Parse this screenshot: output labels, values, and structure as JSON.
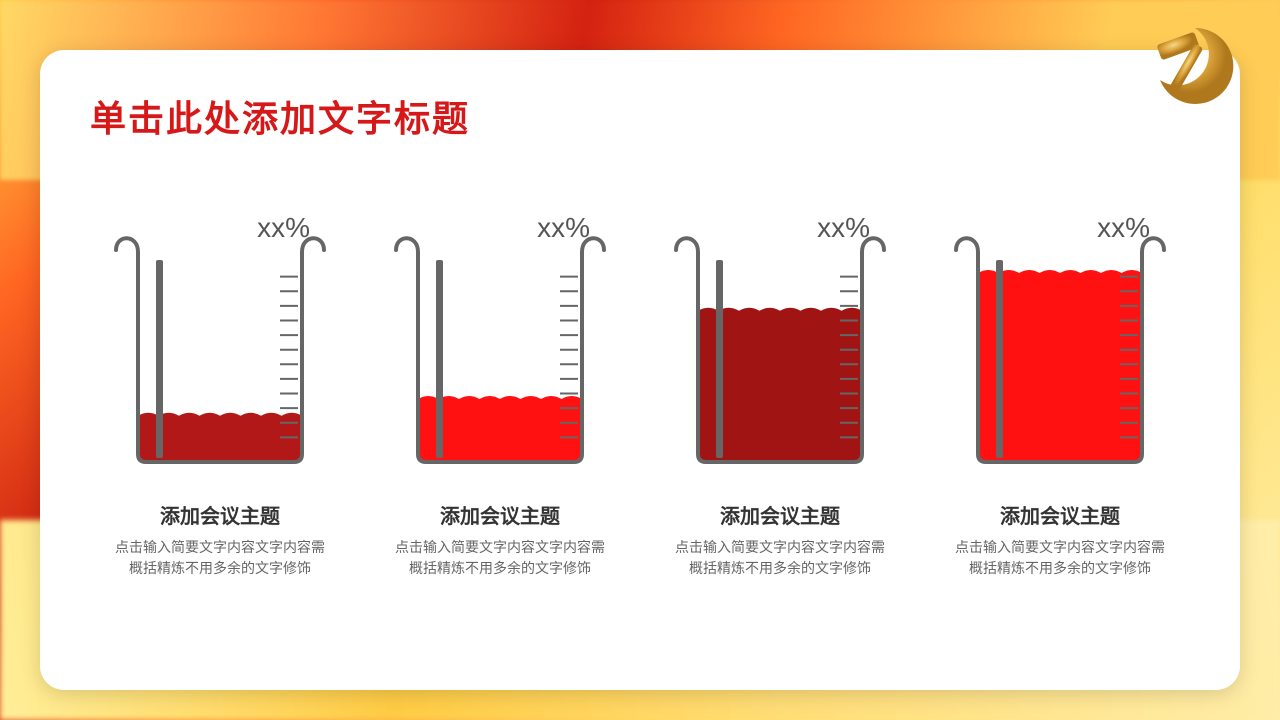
{
  "title": {
    "text": "单击此处添加文字标题",
    "color": "#d61818",
    "fontsize": 36
  },
  "emblem": {
    "main_color": "#d8a038",
    "highlight_color": "#f0cc70"
  },
  "background": {
    "gradient_colors": [
      "#ffcc44",
      "#ff6622",
      "#cc2211",
      "#ff8833",
      "#ffdd66"
    ]
  },
  "beakers": {
    "type": "beaker-fill-chart",
    "outline_color": "#666666",
    "outline_width": 4,
    "tick_color": "#666666",
    "rod_color": "#666666",
    "items": [
      {
        "percent_label": "xx%",
        "fill_percent": 22,
        "fill_color": "#b21818",
        "title": "添加会议主题",
        "desc": "点击输入简要文字内容文字内容需概括精炼不用多余的文字修饰"
      },
      {
        "percent_label": "xx%",
        "fill_percent": 30,
        "fill_color": "#ff1111",
        "title": "添加会议主题",
        "desc": "点击输入简要文字内容文字内容需概括精炼不用多余的文字修饰"
      },
      {
        "percent_label": "xx%",
        "fill_percent": 72,
        "fill_color": "#a01414",
        "title": "添加会议主题",
        "desc": "点击输入简要文字内容文字内容需概括精炼不用多余的文字修饰"
      },
      {
        "percent_label": "xx%",
        "fill_percent": 90,
        "fill_color": "#ff1111",
        "title": "添加会议主题",
        "desc": "点击输入简要文字内容文字内容需概括精炼不用多余的文字修饰"
      }
    ]
  }
}
